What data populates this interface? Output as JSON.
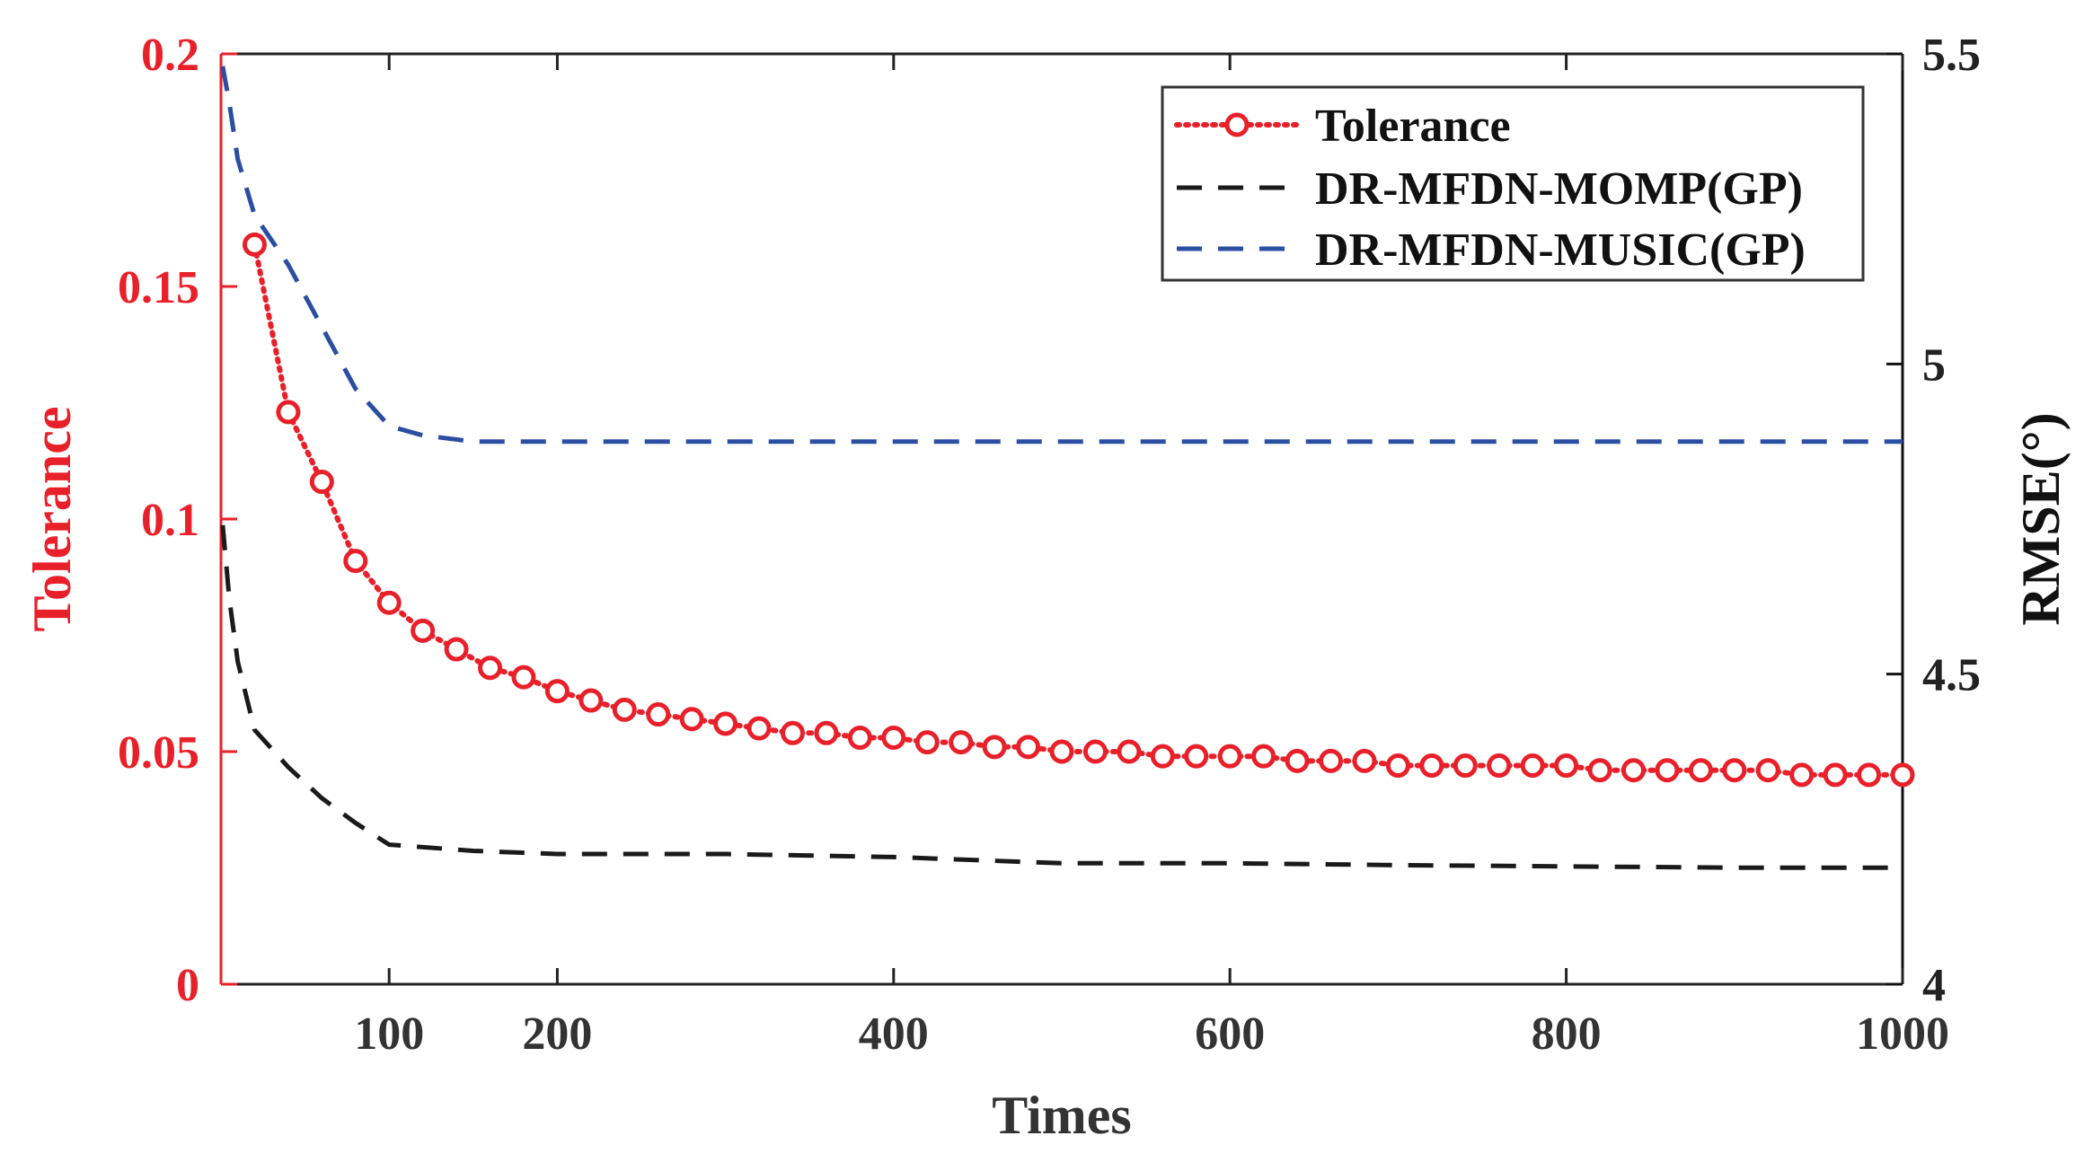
{
  "chart_data": {
    "type": "line",
    "xlabel": "Times",
    "ylabel_left": "Tolerance",
    "ylabel_right": "RMSE(°)",
    "xlim": [
      0,
      1000
    ],
    "ylim_left": [
      0,
      0.2
    ],
    "ylim_right": [
      4,
      5.5
    ],
    "xticks": [
      100,
      200,
      400,
      600,
      800,
      1000
    ],
    "xtick_labels": [
      "100",
      "200",
      "400",
      "600",
      "800",
      "1000"
    ],
    "yticks_left": [
      0,
      0.05,
      0.1,
      0.15,
      0.2
    ],
    "ytick_labels_left": [
      "0",
      "0.05",
      "0.1",
      "0.15",
      "0.2"
    ],
    "yticks_right": [
      4,
      4.5,
      5,
      5.5
    ],
    "ytick_labels_right": [
      "4",
      "4.5",
      "5",
      "5.5"
    ],
    "legend_position": "top-right",
    "colors": {
      "tolerance": "#e8202a",
      "momp": "#1a1a1a",
      "music": "#2b4ea2",
      "left_axis": "#e8202a",
      "right_axis": "#111111"
    },
    "series": [
      {
        "name": "Tolerance",
        "axis": "left",
        "style": "dotted-circle",
        "x": [
          20,
          40,
          60,
          80,
          100,
          120,
          140,
          160,
          180,
          200,
          220,
          240,
          260,
          280,
          300,
          320,
          340,
          360,
          380,
          400,
          420,
          440,
          460,
          480,
          500,
          520,
          540,
          560,
          580,
          600,
          620,
          640,
          660,
          680,
          700,
          720,
          740,
          760,
          780,
          800,
          820,
          840,
          860,
          880,
          900,
          920,
          940,
          960,
          980,
          1000
        ],
        "values": [
          0.159,
          0.123,
          0.108,
          0.091,
          0.082,
          0.076,
          0.072,
          0.068,
          0.066,
          0.063,
          0.061,
          0.059,
          0.058,
          0.057,
          0.056,
          0.055,
          0.054,
          0.054,
          0.053,
          0.053,
          0.052,
          0.052,
          0.051,
          0.051,
          0.05,
          0.05,
          0.05,
          0.049,
          0.049,
          0.049,
          0.049,
          0.048,
          0.048,
          0.048,
          0.047,
          0.047,
          0.047,
          0.047,
          0.047,
          0.047,
          0.046,
          0.046,
          0.046,
          0.046,
          0.046,
          0.046,
          0.045,
          0.045,
          0.045,
          0.045
        ]
      },
      {
        "name": "DR-MFDN-MOMP(GP)",
        "axis": "right",
        "style": "dashed",
        "x": [
          1,
          5,
          10,
          20,
          40,
          60,
          80,
          100,
          150,
          200,
          300,
          400,
          500,
          600,
          700,
          800,
          900,
          1000
        ],
        "values": [
          4.74,
          4.62,
          4.52,
          4.41,
          4.35,
          4.3,
          4.26,
          4.225,
          4.215,
          4.21,
          4.21,
          4.205,
          4.195,
          4.195,
          4.192,
          4.19,
          4.188,
          4.188
        ]
      },
      {
        "name": "DR-MFDN-MUSIC(GP)",
        "axis": "right",
        "style": "dashed",
        "x": [
          1,
          5,
          10,
          20,
          40,
          60,
          80,
          100,
          120,
          150,
          200,
          300,
          400,
          500,
          600,
          700,
          800,
          900,
          1000
        ],
        "values": [
          5.48,
          5.42,
          5.33,
          5.24,
          5.16,
          5.06,
          4.96,
          4.9,
          4.885,
          4.875,
          4.875,
          4.875,
          4.875,
          4.875,
          4.875,
          4.875,
          4.875,
          4.875,
          4.875
        ]
      }
    ]
  }
}
